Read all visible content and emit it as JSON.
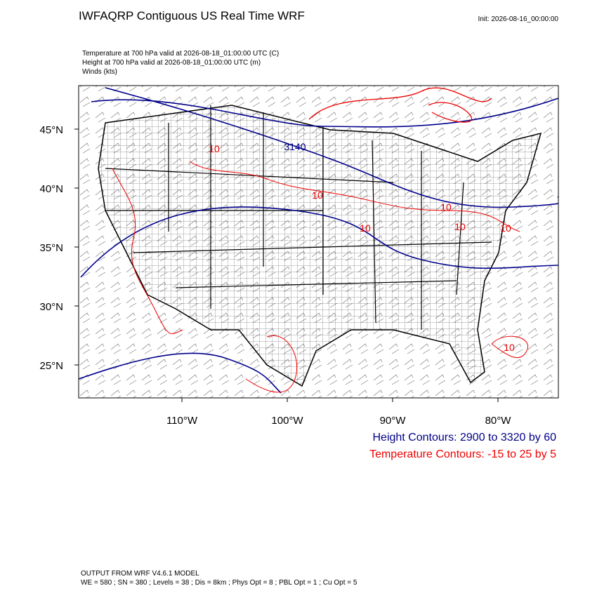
{
  "header": {
    "title": "IWFAQRP Contiguous US Real Time WRF",
    "init": "Init: 2026-08-16_00:00:00",
    "fields": [
      "Temperature at 700 hPa valid at 2026-08-18_01:00:00 UTC   (C)",
      "Height at 700 hPa valid at 2026-08-18_01:00:00 UTC   (m)",
      "Winds   (kts)"
    ]
  },
  "map": {
    "lat_ticks": [
      {
        "value": 45,
        "label": "45°N"
      },
      {
        "value": 40,
        "label": "40°N"
      },
      {
        "value": 35,
        "label": "35°N"
      },
      {
        "value": 30,
        "label": "30°N"
      },
      {
        "value": 25,
        "label": "25°N"
      }
    ],
    "lon_ticks": [
      {
        "value": -110,
        "label": "110°W"
      },
      {
        "value": -100,
        "label": "100°W"
      },
      {
        "value": -90,
        "label": "90°W"
      },
      {
        "value": -80,
        "label": "80°W"
      }
    ],
    "height_labels": [
      "3140"
    ],
    "temperature_labels": [
      "10",
      "10",
      "10",
      "10",
      "10",
      "10",
      "10"
    ]
  },
  "legend": {
    "height": "Height Contours: 2900 to 3320 by 60",
    "temperature": "Temperature Contours: -15 to 25 by 5"
  },
  "footer": {
    "line1": "OUTPUT FROM WRF V4.6.1 MODEL",
    "line2": "WE = 580 ; SN = 380 ; Levels = 38 ; Dis = 8km ; Phys Opt = 8 ; PBL Opt = 1 ; Cu Opt = 5"
  }
}
